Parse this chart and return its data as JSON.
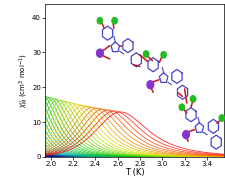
{
  "title": "",
  "xlabel": "T (K)",
  "ylabel": "$\\chi_M''$ (cm$^3$ mol$^{-1}$)",
  "xlim": [
    1.95,
    3.55
  ],
  "ylim": [
    0,
    44
  ],
  "xticks": [
    2.0,
    2.2,
    2.4,
    2.6,
    2.8,
    3.0,
    3.2,
    3.4
  ],
  "yticks": [
    0,
    10,
    20,
    30,
    40
  ],
  "background_color": "#ffffff",
  "num_curves": 38,
  "T_min": 1.95,
  "T_max": 3.55,
  "tau0": 3e-10,
  "Ea_kB": 33.0,
  "C": 68.0,
  "freq_min_log": -1.0,
  "freq_max_log": 3.3
}
